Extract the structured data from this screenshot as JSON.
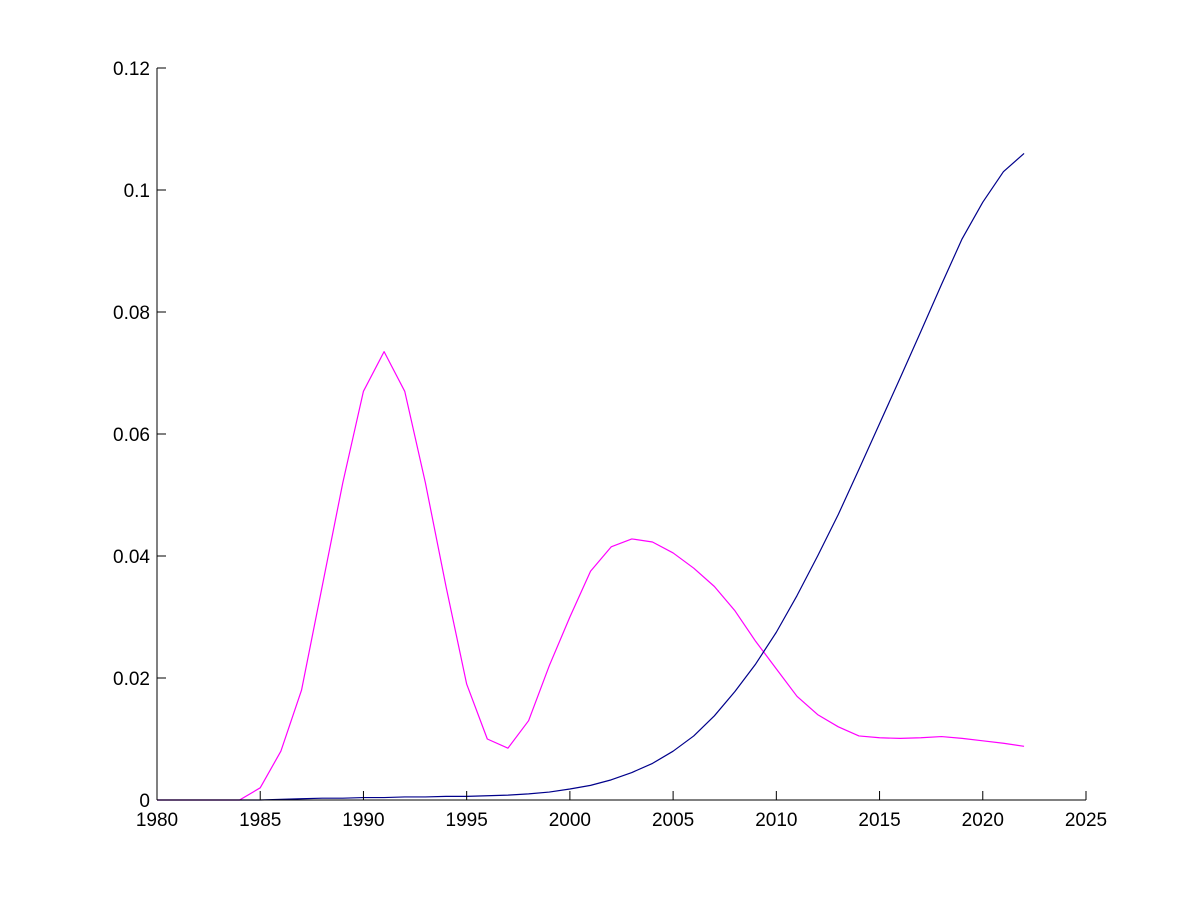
{
  "chart_data": {
    "type": "line",
    "title": "",
    "xlabel": "",
    "ylabel": "",
    "xlim": [
      1980,
      2025
    ],
    "ylim": [
      0,
      0.12
    ],
    "xticks": [
      1980,
      1985,
      1990,
      1995,
      2000,
      2005,
      2010,
      2015,
      2020,
      2025
    ],
    "xtick_labels": [
      "1980",
      "1985",
      "1990",
      "1995",
      "2000",
      "2005",
      "2010",
      "2015",
      "2020",
      "2025"
    ],
    "yticks": [
      0,
      0.02,
      0.04,
      0.06,
      0.08,
      0.1,
      0.12
    ],
    "ytick_labels": [
      "0",
      "0.02",
      "0.04",
      "0.06",
      "0.08",
      "0.1",
      "0.12"
    ],
    "grid": false,
    "legend": "none",
    "series": [
      {
        "color": "#ff00ff",
        "x": [
          1980,
          1981,
          1982,
          1983,
          1984,
          1985,
          1986,
          1987,
          1988,
          1989,
          1990,
          1991,
          1992,
          1993,
          1994,
          1995,
          1996,
          1997,
          1998,
          1999,
          2000,
          2001,
          2002,
          2003,
          2004,
          2005,
          2006,
          2007,
          2008,
          2009,
          2010,
          2011,
          2012,
          2013,
          2014,
          2015,
          2016,
          2017,
          2018,
          2019,
          2020,
          2021,
          2022
        ],
        "y": [
          0,
          0,
          0,
          0,
          0,
          0.002,
          0.008,
          0.018,
          0.035,
          0.052,
          0.067,
          0.0735,
          0.067,
          0.052,
          0.035,
          0.019,
          0.01,
          0.0085,
          0.013,
          0.022,
          0.03,
          0.0375,
          0.0415,
          0.0428,
          0.0423,
          0.0405,
          0.038,
          0.035,
          0.031,
          0.026,
          0.0215,
          0.017,
          0.014,
          0.012,
          0.0105,
          0.0102,
          0.0101,
          0.0102,
          0.0104,
          0.0101,
          0.0097,
          0.0093,
          0.0088
        ]
      },
      {
        "color": "#00008b",
        "x": [
          1980,
          1981,
          1982,
          1983,
          1984,
          1985,
          1986,
          1987,
          1988,
          1989,
          1990,
          1991,
          1992,
          1993,
          1994,
          1995,
          1996,
          1997,
          1998,
          1999,
          2000,
          2001,
          2002,
          2003,
          2004,
          2005,
          2006,
          2007,
          2008,
          2009,
          2010,
          2011,
          2012,
          2013,
          2014,
          2015,
          2016,
          2017,
          2018,
          2019,
          2020,
          2021,
          2022
        ],
        "y": [
          0,
          0,
          0,
          0,
          0,
          0,
          0.0001,
          0.0002,
          0.0003,
          0.0003,
          0.0004,
          0.0004,
          0.0005,
          0.0005,
          0.0006,
          0.0006,
          0.0007,
          0.0008,
          0.001,
          0.0013,
          0.0018,
          0.0024,
          0.0033,
          0.0045,
          0.006,
          0.008,
          0.0105,
          0.0138,
          0.0178,
          0.0223,
          0.0275,
          0.0335,
          0.04,
          0.0468,
          0.0542,
          0.0617,
          0.0692,
          0.0768,
          0.0845,
          0.092,
          0.098,
          0.103,
          0.106
        ]
      }
    ]
  }
}
